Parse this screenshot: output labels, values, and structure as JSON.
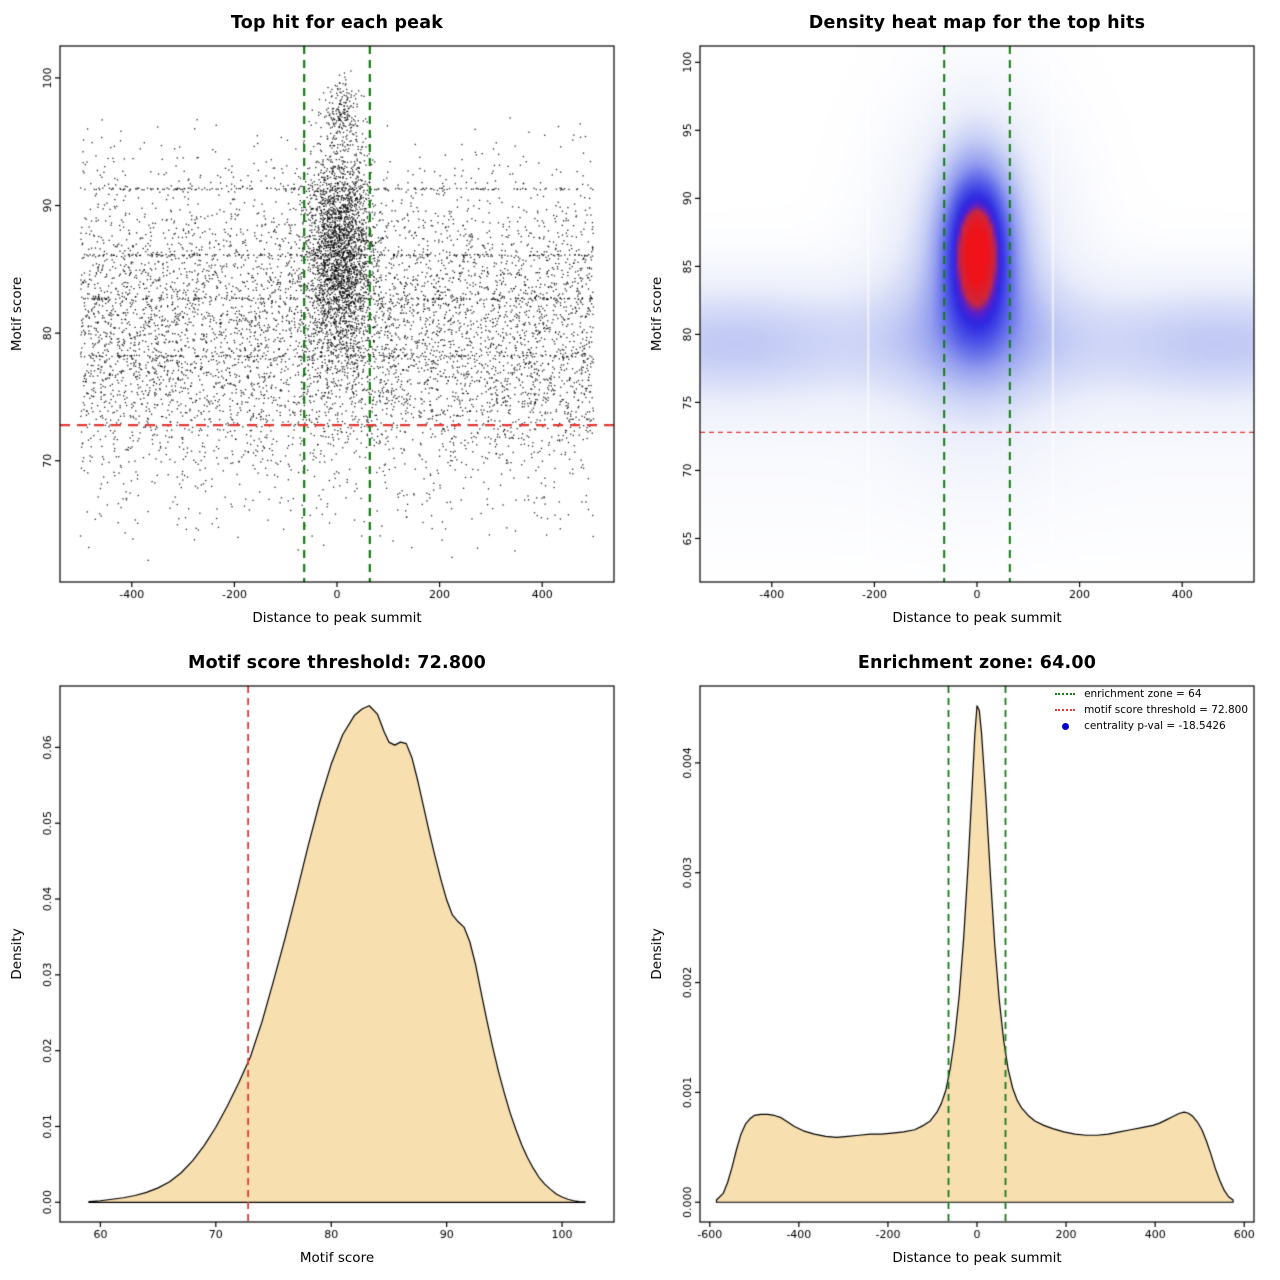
{
  "background": "#ffffff",
  "chart_data": [
    {
      "type": "scatter",
      "title": "Top hit for each peak",
      "xlabel": "Distance to peak summit",
      "ylabel": "Motif score",
      "xlim": [
        -540,
        540
      ],
      "ylim": [
        60.5,
        102.5
      ],
      "xticks": [
        -400,
        -200,
        0,
        200,
        400
      ],
      "yticks": [
        70,
        80,
        90,
        100
      ],
      "point_color": "#000000",
      "point_size": 1.3,
      "point_alpha": 0.85,
      "vlines": {
        "x": [
          -64,
          64
        ],
        "color": "#157a15",
        "width": 2.2,
        "dash": [
          8,
          6
        ]
      },
      "hlines": {
        "y": [
          72.8
        ],
        "color": "#e53935",
        "width": 2.2,
        "dash": [
          10,
          7
        ]
      },
      "model": {
        "seed": 42,
        "components": [
          {
            "name": "background-hits",
            "n": 6200,
            "x": {
              "dist": "uniform",
              "min": -500,
              "max": 500
            },
            "y": {
              "dist": "normal",
              "mean": 80,
              "sd": 6.2,
              "min": 62,
              "max": 97
            }
          },
          {
            "name": "central-cluster",
            "n": 2600,
            "x": {
              "dist": "normal",
              "mean": 6,
              "sd": 33,
              "min": -480,
              "max": 480
            },
            "y": {
              "dist": "normal",
              "mean": 86.5,
              "sd": 4.4,
              "min": 72,
              "max": 99.2
            }
          },
          {
            "name": "summit-tip",
            "n": 170,
            "x": {
              "dist": "normal",
              "mean": 8,
              "sd": 15,
              "min": -70,
              "max": 80
            },
            "y": {
              "dist": "normal",
              "mean": 97.3,
              "sd": 1.2,
              "min": 94.5,
              "max": 100.6
            }
          },
          {
            "name": "repeated-score-bands",
            "n": 640,
            "x": {
              "dist": "uniform",
              "min": -500,
              "max": 500
            },
            "y": {
              "dist": "bands",
              "values": [
                91.3,
                86.1,
                82.7,
                78.2
              ],
              "jitter": 0.07
            }
          }
        ]
      }
    },
    {
      "type": "heatmap",
      "title": "Density heat map for the top hits",
      "xlabel": "Distance to peak summit",
      "ylabel": "Motif score",
      "xlim": [
        -540,
        540
      ],
      "ylim": [
        61.8,
        101.2
      ],
      "xticks": [
        -400,
        -200,
        0,
        200,
        400
      ],
      "yticks": [
        65,
        70,
        75,
        80,
        85,
        90,
        95,
        100
      ],
      "vlines": {
        "x": [
          -64,
          64
        ],
        "color": "#157a15",
        "width": 2.0,
        "dash": [
          8,
          6
        ]
      },
      "hlines": {
        "y": [
          72.8
        ],
        "color": "#e53935",
        "width": 1.3,
        "dash": [
          5,
          4
        ]
      },
      "stripes": {
        "x": [
          -212,
          148
        ],
        "color": "#ffffff",
        "width": 2.5,
        "alpha": 0.55
      },
      "density_model": {
        "norm": 1.45,
        "components": [
          {
            "kind": "gauss2d",
            "amp": 1.0,
            "x0": 0,
            "sx": 52,
            "y0": 86.8,
            "sy": 4.6
          },
          {
            "kind": "gauss2d",
            "amp": 0.5,
            "x0": 0,
            "sx": 115,
            "y0": 84.5,
            "sy": 7.5
          },
          {
            "kind": "hband",
            "amp": 0.32,
            "y0": 79.4,
            "sy": 3.3,
            "edge_amp": 0.17,
            "edge_x": 470,
            "edge_sx": 150
          },
          {
            "kind": "hband",
            "amp": 0.06,
            "y0": 70.5,
            "sy": 4.5,
            "edge_amp": 0,
            "edge_x": 0,
            "edge_sx": 1
          }
        ],
        "colormap": [
          [
            0,
            255,
            255,
            255
          ],
          [
            0.16,
            236,
            239,
            251
          ],
          [
            0.32,
            200,
            208,
            246
          ],
          [
            0.5,
            150,
            160,
            240
          ],
          [
            0.68,
            80,
            88,
            232
          ],
          [
            0.8,
            45,
            40,
            226
          ],
          [
            0.86,
            90,
            30,
            205
          ],
          [
            0.905,
            205,
            40,
            60
          ],
          [
            1,
            240,
            18,
            25
          ]
        ]
      }
    },
    {
      "type": "area",
      "title": "Motif score threshold: 72.800",
      "xlabel": "Motif score",
      "ylabel": "Density",
      "xlim": [
        56.5,
        104.5
      ],
      "ylim": [
        -0.0026,
        0.0681
      ],
      "xticks": [
        60,
        70,
        80,
        90,
        100
      ],
      "yticks": [
        0,
        0.01,
        0.02,
        0.03,
        0.04,
        0.05,
        0.06
      ],
      "ytick_labels": [
        "0.00",
        "0.01",
        "0.02",
        "0.03",
        "0.04",
        "0.05",
        "0.06"
      ],
      "fill": "#f7dfb0",
      "stroke": "#000000",
      "vlines": {
        "x": [
          72.8
        ],
        "color": "#e53935",
        "width": 1.8,
        "dash": [
          7,
          5
        ]
      },
      "points": [
        [
          59,
          0.0001
        ],
        [
          60,
          0.0002
        ],
        [
          61,
          0.0004
        ],
        [
          62,
          0.0006
        ],
        [
          63,
          0.0009
        ],
        [
          64,
          0.0013
        ],
        [
          65,
          0.0019
        ],
        [
          66,
          0.0027
        ],
        [
          67,
          0.0039
        ],
        [
          68,
          0.0055
        ],
        [
          69,
          0.0075
        ],
        [
          70,
          0.0099
        ],
        [
          71,
          0.0127
        ],
        [
          72,
          0.0158
        ],
        [
          73,
          0.0192
        ],
        [
          74,
          0.0238
        ],
        [
          75,
          0.0292
        ],
        [
          76,
          0.0348
        ],
        [
          77,
          0.0408
        ],
        [
          78,
          0.047
        ],
        [
          79,
          0.0528
        ],
        [
          80,
          0.0578
        ],
        [
          81,
          0.0617
        ],
        [
          82,
          0.0642
        ],
        [
          82.7,
          0.0651
        ],
        [
          83.3,
          0.0655
        ],
        [
          84,
          0.0644
        ],
        [
          84.6,
          0.062
        ],
        [
          85,
          0.0607
        ],
        [
          85.5,
          0.0603
        ],
        [
          86,
          0.0607
        ],
        [
          86.5,
          0.0605
        ],
        [
          87,
          0.0586
        ],
        [
          87.5,
          0.0556
        ],
        [
          88,
          0.0522
        ],
        [
          88.5,
          0.0488
        ],
        [
          89,
          0.0456
        ],
        [
          89.5,
          0.0426
        ],
        [
          90,
          0.0399
        ],
        [
          90.5,
          0.0379
        ],
        [
          91,
          0.037
        ],
        [
          91.5,
          0.0363
        ],
        [
          92,
          0.0344
        ],
        [
          92.5,
          0.0314
        ],
        [
          93,
          0.0276
        ],
        [
          93.5,
          0.0239
        ],
        [
          94,
          0.0204
        ],
        [
          94.5,
          0.0172
        ],
        [
          95,
          0.0144
        ],
        [
          95.5,
          0.0118
        ],
        [
          96,
          0.0096
        ],
        [
          96.5,
          0.0076
        ],
        [
          97,
          0.0059
        ],
        [
          97.5,
          0.0045
        ],
        [
          98,
          0.0033
        ],
        [
          98.5,
          0.0024
        ],
        [
          99,
          0.0017
        ],
        [
          99.5,
          0.0011
        ],
        [
          100,
          0.0007
        ],
        [
          100.5,
          0.0004
        ],
        [
          101,
          0.0002
        ],
        [
          101.5,
          0.0001
        ],
        [
          102,
          5e-05
        ]
      ]
    },
    {
      "type": "area",
      "title": "Enrichment zone: 64.00",
      "xlabel": "Distance to peak summit",
      "ylabel": "Density",
      "xlim": [
        -622,
        622
      ],
      "ylim": [
        -0.00018,
        0.0047
      ],
      "xticks": [
        -600,
        -400,
        -200,
        0,
        200,
        400,
        600
      ],
      "yticks": [
        0,
        0.001,
        0.002,
        0.003,
        0.004
      ],
      "ytick_labels": [
        "0.000",
        "0.001",
        "0.002",
        "0.003",
        "0.004"
      ],
      "fill": "#f7dfb0",
      "stroke": "#000000",
      "vlines": {
        "x": [
          -64,
          64
        ],
        "color": "#157a15",
        "width": 1.8,
        "dash": [
          7,
          5
        ]
      },
      "points": [
        [
          -585,
          2e-05
        ],
        [
          -570,
          8e-05
        ],
        [
          -560,
          0.00018
        ],
        [
          -550,
          0.00032
        ],
        [
          -540,
          0.00048
        ],
        [
          -530,
          0.00062
        ],
        [
          -520,
          0.00071
        ],
        [
          -510,
          0.00076
        ],
        [
          -500,
          0.00079
        ],
        [
          -485,
          0.0008
        ],
        [
          -470,
          0.0008
        ],
        [
          -455,
          0.00079
        ],
        [
          -440,
          0.00077
        ],
        [
          -425,
          0.00073
        ],
        [
          -410,
          0.00069
        ],
        [
          -390,
          0.00065
        ],
        [
          -365,
          0.00062
        ],
        [
          -340,
          0.0006
        ],
        [
          -315,
          0.00059
        ],
        [
          -290,
          0.0006
        ],
        [
          -265,
          0.00061
        ],
        [
          -240,
          0.00062
        ],
        [
          -215,
          0.00062
        ],
        [
          -190,
          0.00063
        ],
        [
          -165,
          0.00064
        ],
        [
          -140,
          0.00066
        ],
        [
          -120,
          0.0007
        ],
        [
          -105,
          0.00074
        ],
        [
          -90,
          0.00082
        ],
        [
          -80,
          0.0009
        ],
        [
          -70,
          0.00102
        ],
        [
          -60,
          0.00122
        ],
        [
          -50,
          0.0015
        ],
        [
          -40,
          0.00188
        ],
        [
          -30,
          0.0024
        ],
        [
          -20,
          0.00307
        ],
        [
          -10,
          0.00385
        ],
        [
          -5,
          0.00425
        ],
        [
          0,
          0.00452
        ],
        [
          5,
          0.00448
        ],
        [
          10,
          0.00428
        ],
        [
          20,
          0.00368
        ],
        [
          30,
          0.00298
        ],
        [
          40,
          0.00234
        ],
        [
          50,
          0.00184
        ],
        [
          60,
          0.00147
        ],
        [
          70,
          0.00121
        ],
        [
          80,
          0.00104
        ],
        [
          90,
          0.00093
        ],
        [
          100,
          0.00086
        ],
        [
          115,
          0.00079
        ],
        [
          130,
          0.00074
        ],
        [
          150,
          0.0007
        ],
        [
          170,
          0.00067
        ],
        [
          195,
          0.00064
        ],
        [
          220,
          0.00062
        ],
        [
          245,
          0.00061
        ],
        [
          270,
          0.00061
        ],
        [
          295,
          0.00062
        ],
        [
          320,
          0.00064
        ],
        [
          345,
          0.00066
        ],
        [
          370,
          0.00068
        ],
        [
          395,
          0.0007
        ],
        [
          410,
          0.00072
        ],
        [
          425,
          0.00075
        ],
        [
          440,
          0.00078
        ],
        [
          455,
          0.00081
        ],
        [
          465,
          0.00082
        ],
        [
          475,
          0.00081
        ],
        [
          485,
          0.00078
        ],
        [
          495,
          0.00073
        ],
        [
          505,
          0.00066
        ],
        [
          515,
          0.00056
        ],
        [
          525,
          0.00044
        ],
        [
          535,
          0.00031
        ],
        [
          545,
          0.0002
        ],
        [
          555,
          0.00011
        ],
        [
          565,
          5e-05
        ],
        [
          575,
          2e-05
        ]
      ],
      "legend": {
        "items": [
          {
            "label": "enrichment zone = 64",
            "color": "#157a15",
            "marker": "dotted-line"
          },
          {
            "label": "motif score threshold = 72.800",
            "color": "#e53935",
            "marker": "dotted-line"
          },
          {
            "label": "centrality p-val = -18.5426",
            "color": "#0000cc",
            "marker": "point"
          }
        ]
      }
    }
  ]
}
